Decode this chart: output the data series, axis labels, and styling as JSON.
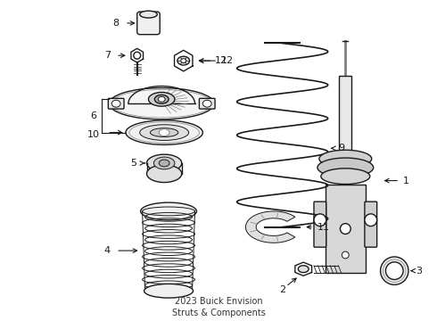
{
  "title": "2023 Buick Envision\nStruts & Components",
  "background_color": "#ffffff",
  "line_color": "#1a1a1a",
  "label_color": "#000000",
  "fig_width": 4.9,
  "fig_height": 3.6,
  "dpi": 100
}
